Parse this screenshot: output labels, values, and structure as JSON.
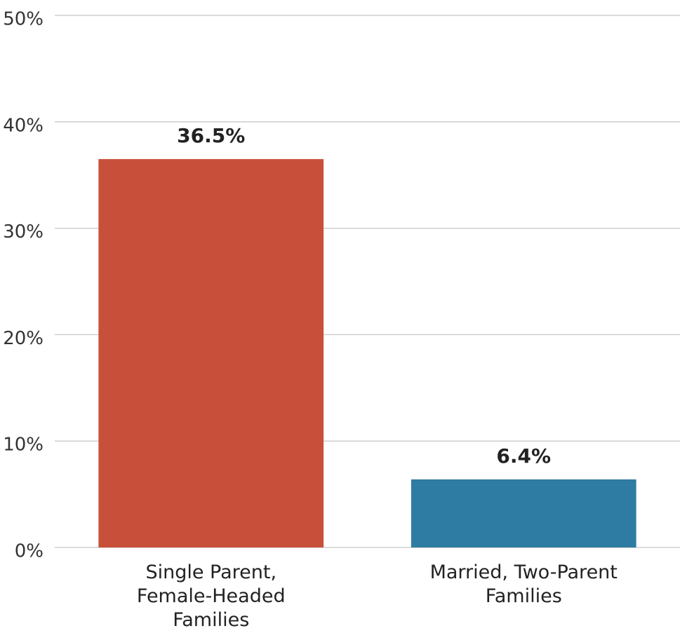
{
  "chart_data": {
    "type": "bar",
    "categories": [
      "Single Parent, Female-Headed Families",
      "Married, Two-Parent Families"
    ],
    "values": [
      36.5,
      6.4
    ],
    "value_labels": [
      "36.5%",
      "6.4%"
    ],
    "colors": [
      "#c8503a",
      "#2e7ca3"
    ],
    "ylim": [
      0,
      50
    ],
    "yticks": [
      {
        "value": 0,
        "label": "0%"
      },
      {
        "value": 10,
        "label": "10%"
      },
      {
        "value": 20,
        "label": "20%"
      },
      {
        "value": 30,
        "label": "30%"
      },
      {
        "value": 40,
        "label": "40%"
      },
      {
        "value": 50,
        "label": "50%"
      }
    ],
    "grid": true
  }
}
